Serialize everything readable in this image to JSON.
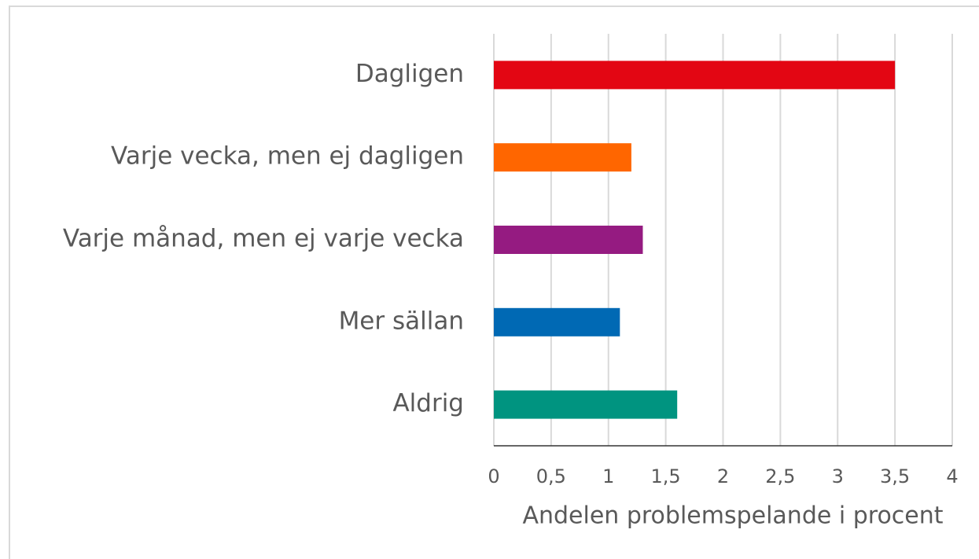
{
  "chart_data": {
    "type": "bar",
    "orientation": "horizontal",
    "x_label": "Andelen problemspelande i procent",
    "categories": [
      "Dagligen",
      "Varje vecka, men ej dagligen",
      "Varje månad, men ej varje vecka",
      "Mer sällan",
      "Aldrig"
    ],
    "values": [
      3.5,
      1.2,
      1.3,
      1.1,
      1.6
    ],
    "colors": [
      "#e30613",
      "#ff6600",
      "#951b81",
      "#0069b4",
      "#009480"
    ],
    "xlim": [
      0,
      4
    ],
    "xticks": [
      0,
      {
        "value": 0.5,
        "label": "0,5"
      },
      1,
      {
        "value": 1.5,
        "label": "1,5"
      },
      2,
      {
        "value": 2.5,
        "label": "2,5"
      },
      3,
      {
        "value": 3.5,
        "label": "3,5"
      },
      4
    ],
    "grid": true
  }
}
